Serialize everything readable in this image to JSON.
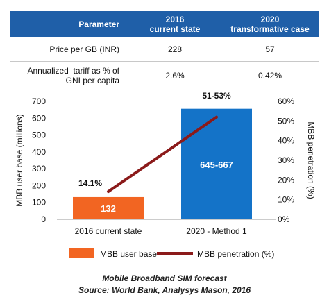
{
  "table": {
    "header": {
      "parameter": "Parameter",
      "col1_line1": "2016",
      "col1_line2": "current state",
      "col2_line1": "2020",
      "col2_line2": "transformative case"
    },
    "rows": [
      {
        "label": "Price per GB (INR)",
        "v2016": "228",
        "v2020": "57"
      },
      {
        "label_line1": "Annualized  tariff as % of",
        "label_line2": "GNI per capita",
        "v2016": "2.6%",
        "v2020": "0.42%"
      }
    ]
  },
  "chart_data": {
    "type": "bar",
    "categories": [
      "2016 current state",
      "2020 - Method 1"
    ],
    "series": [
      {
        "name": "MBB user base",
        "axis": "left",
        "values": [
          132,
          656
        ],
        "labels": [
          "132",
          "645-667"
        ],
        "color": "#f26522"
      },
      {
        "name": "MBB penetration (%)",
        "type": "line",
        "axis": "right",
        "values": [
          14.1,
          52
        ],
        "labels": [
          "14.1%",
          "51-53%"
        ],
        "color": "#8b1a1a"
      }
    ],
    "ylabel": "MBB user base (millions)",
    "y2label": "MBB penetration (%)",
    "ylim": [
      0,
      700
    ],
    "yticks": [
      "0",
      "100",
      "200",
      "300",
      "400",
      "500",
      "600",
      "700"
    ],
    "y2lim": [
      0,
      60
    ],
    "y2ticks": [
      "0%",
      "10%",
      "20%",
      "30%",
      "40%",
      "50%",
      "60%"
    ],
    "bar_colors": [
      "#f26522",
      "#1473c8"
    ],
    "legend_position": "bottom",
    "grid": false
  },
  "caption": {
    "line1": "Mobile Broadband SIM forecast",
    "line2": "Source: World Bank, Analysys Mason, 2016"
  }
}
